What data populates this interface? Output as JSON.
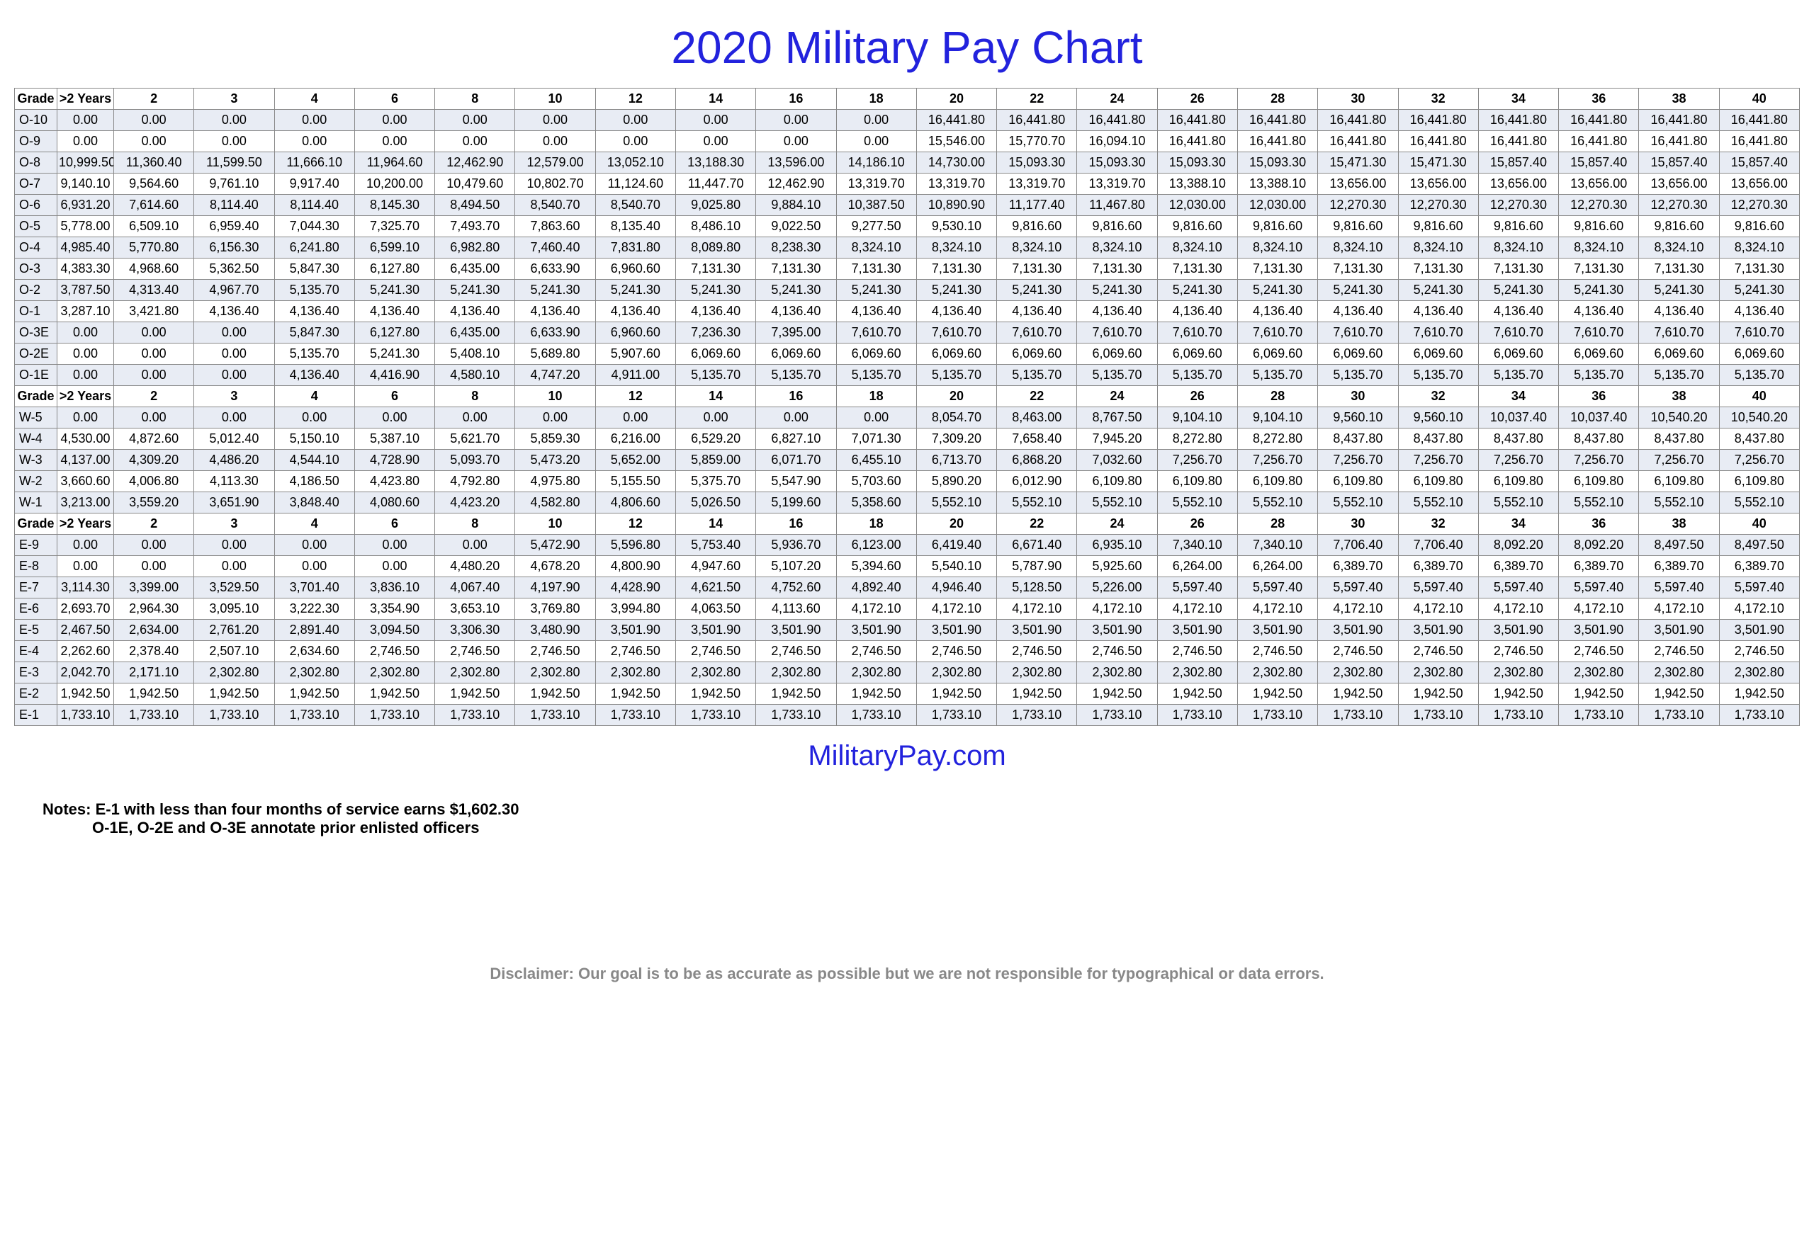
{
  "title": "2020 Military Pay Chart",
  "source": "MilitaryPay.com",
  "notes_label": "Notes:",
  "note1": "E-1 with less than four months of service earns $1,602.30",
  "note2": "O-1E, O-2E and O-3E annotate prior enlisted officers",
  "disclaimer": "Disclaimer: Our goal is to be as accurate as possible but we are not responsible for typographical or data errors.",
  "columns": [
    "Grade",
    ">2 Years",
    "2",
    "3",
    "4",
    "6",
    "8",
    "10",
    "12",
    "14",
    "16",
    "18",
    "20",
    "22",
    "24",
    "26",
    "28",
    "30",
    "32",
    "34",
    "36",
    "38",
    "40"
  ],
  "sections": [
    {
      "rows": [
        {
          "grade": "O-10",
          "cells": [
            "0.00",
            "0.00",
            "0.00",
            "0.00",
            "0.00",
            "0.00",
            "0.00",
            "0.00",
            "0.00",
            "0.00",
            "0.00",
            "16,441.80",
            "16,441.80",
            "16,441.80",
            "16,441.80",
            "16,441.80",
            "16,441.80",
            "16,441.80",
            "16,441.80",
            "16,441.80",
            "16,441.80",
            "16,441.80"
          ]
        },
        {
          "grade": "O-9",
          "cells": [
            "0.00",
            "0.00",
            "0.00",
            "0.00",
            "0.00",
            "0.00",
            "0.00",
            "0.00",
            "0.00",
            "0.00",
            "0.00",
            "15,546.00",
            "15,770.70",
            "16,094.10",
            "16,441.80",
            "16,441.80",
            "16,441.80",
            "16,441.80",
            "16,441.80",
            "16,441.80",
            "16,441.80",
            "16,441.80"
          ]
        },
        {
          "grade": "O-8",
          "cells": [
            "10,999.50",
            "11,360.40",
            "11,599.50",
            "11,666.10",
            "11,964.60",
            "12,462.90",
            "12,579.00",
            "13,052.10",
            "13,188.30",
            "13,596.00",
            "14,186.10",
            "14,730.00",
            "15,093.30",
            "15,093.30",
            "15,093.30",
            "15,093.30",
            "15,471.30",
            "15,471.30",
            "15,857.40",
            "15,857.40",
            "15,857.40",
            "15,857.40"
          ]
        },
        {
          "grade": "O-7",
          "cells": [
            "9,140.10",
            "9,564.60",
            "9,761.10",
            "9,917.40",
            "10,200.00",
            "10,479.60",
            "10,802.70",
            "11,124.60",
            "11,447.70",
            "12,462.90",
            "13,319.70",
            "13,319.70",
            "13,319.70",
            "13,319.70",
            "13,388.10",
            "13,388.10",
            "13,656.00",
            "13,656.00",
            "13,656.00",
            "13,656.00",
            "13,656.00",
            "13,656.00"
          ]
        },
        {
          "grade": "O-6",
          "cells": [
            "6,931.20",
            "7,614.60",
            "8,114.40",
            "8,114.40",
            "8,145.30",
            "8,494.50",
            "8,540.70",
            "8,540.70",
            "9,025.80",
            "9,884.10",
            "10,387.50",
            "10,890.90",
            "11,177.40",
            "11,467.80",
            "12,030.00",
            "12,030.00",
            "12,270.30",
            "12,270.30",
            "12,270.30",
            "12,270.30",
            "12,270.30",
            "12,270.30"
          ]
        },
        {
          "grade": "O-5",
          "cells": [
            "5,778.00",
            "6,509.10",
            "6,959.40",
            "7,044.30",
            "7,325.70",
            "7,493.70",
            "7,863.60",
            "8,135.40",
            "8,486.10",
            "9,022.50",
            "9,277.50",
            "9,530.10",
            "9,816.60",
            "9,816.60",
            "9,816.60",
            "9,816.60",
            "9,816.60",
            "9,816.60",
            "9,816.60",
            "9,816.60",
            "9,816.60",
            "9,816.60"
          ]
        },
        {
          "grade": "O-4",
          "cells": [
            "4,985.40",
            "5,770.80",
            "6,156.30",
            "6,241.80",
            "6,599.10",
            "6,982.80",
            "7,460.40",
            "7,831.80",
            "8,089.80",
            "8,238.30",
            "8,324.10",
            "8,324.10",
            "8,324.10",
            "8,324.10",
            "8,324.10",
            "8,324.10",
            "8,324.10",
            "8,324.10",
            "8,324.10",
            "8,324.10",
            "8,324.10",
            "8,324.10"
          ]
        },
        {
          "grade": "O-3",
          "cells": [
            "4,383.30",
            "4,968.60",
            "5,362.50",
            "5,847.30",
            "6,127.80",
            "6,435.00",
            "6,633.90",
            "6,960.60",
            "7,131.30",
            "7,131.30",
            "7,131.30",
            "7,131.30",
            "7,131.30",
            "7,131.30",
            "7,131.30",
            "7,131.30",
            "7,131.30",
            "7,131.30",
            "7,131.30",
            "7,131.30",
            "7,131.30",
            "7,131.30"
          ]
        },
        {
          "grade": "O-2",
          "cells": [
            "3,787.50",
            "4,313.40",
            "4,967.70",
            "5,135.70",
            "5,241.30",
            "5,241.30",
            "5,241.30",
            "5,241.30",
            "5,241.30",
            "5,241.30",
            "5,241.30",
            "5,241.30",
            "5,241.30",
            "5,241.30",
            "5,241.30",
            "5,241.30",
            "5,241.30",
            "5,241.30",
            "5,241.30",
            "5,241.30",
            "5,241.30",
            "5,241.30"
          ]
        },
        {
          "grade": "O-1",
          "cells": [
            "3,287.10",
            "3,421.80",
            "4,136.40",
            "4,136.40",
            "4,136.40",
            "4,136.40",
            "4,136.40",
            "4,136.40",
            "4,136.40",
            "4,136.40",
            "4,136.40",
            "4,136.40",
            "4,136.40",
            "4,136.40",
            "4,136.40",
            "4,136.40",
            "4,136.40",
            "4,136.40",
            "4,136.40",
            "4,136.40",
            "4,136.40",
            "4,136.40"
          ]
        },
        {
          "grade": "O-3E",
          "cells": [
            "0.00",
            "0.00",
            "0.00",
            "5,847.30",
            "6,127.80",
            "6,435.00",
            "6,633.90",
            "6,960.60",
            "7,236.30",
            "7,395.00",
            "7,610.70",
            "7,610.70",
            "7,610.70",
            "7,610.70",
            "7,610.70",
            "7,610.70",
            "7,610.70",
            "7,610.70",
            "7,610.70",
            "7,610.70",
            "7,610.70",
            "7,610.70"
          ]
        },
        {
          "grade": "O-2E",
          "cells": [
            "0.00",
            "0.00",
            "0.00",
            "5,135.70",
            "5,241.30",
            "5,408.10",
            "5,689.80",
            "5,907.60",
            "6,069.60",
            "6,069.60",
            "6,069.60",
            "6,069.60",
            "6,069.60",
            "6,069.60",
            "6,069.60",
            "6,069.60",
            "6,069.60",
            "6,069.60",
            "6,069.60",
            "6,069.60",
            "6,069.60",
            "6,069.60"
          ]
        },
        {
          "grade": "O-1E",
          "cells": [
            "0.00",
            "0.00",
            "0.00",
            "4,136.40",
            "4,416.90",
            "4,580.10",
            "4,747.20",
            "4,911.00",
            "5,135.70",
            "5,135.70",
            "5,135.70",
            "5,135.70",
            "5,135.70",
            "5,135.70",
            "5,135.70",
            "5,135.70",
            "5,135.70",
            "5,135.70",
            "5,135.70",
            "5,135.70",
            "5,135.70",
            "5,135.70"
          ]
        }
      ]
    },
    {
      "rows": [
        {
          "grade": "W-5",
          "cells": [
            "0.00",
            "0.00",
            "0.00",
            "0.00",
            "0.00",
            "0.00",
            "0.00",
            "0.00",
            "0.00",
            "0.00",
            "0.00",
            "8,054.70",
            "8,463.00",
            "8,767.50",
            "9,104.10",
            "9,104.10",
            "9,560.10",
            "9,560.10",
            "10,037.40",
            "10,037.40",
            "10,540.20",
            "10,540.20"
          ]
        },
        {
          "grade": "W-4",
          "cells": [
            "4,530.00",
            "4,872.60",
            "5,012.40",
            "5,150.10",
            "5,387.10",
            "5,621.70",
            "5,859.30",
            "6,216.00",
            "6,529.20",
            "6,827.10",
            "7,071.30",
            "7,309.20",
            "7,658.40",
            "7,945.20",
            "8,272.80",
            "8,272.80",
            "8,437.80",
            "8,437.80",
            "8,437.80",
            "8,437.80",
            "8,437.80",
            "8,437.80"
          ]
        },
        {
          "grade": "W-3",
          "cells": [
            "4,137.00",
            "4,309.20",
            "4,486.20",
            "4,544.10",
            "4,728.90",
            "5,093.70",
            "5,473.20",
            "5,652.00",
            "5,859.00",
            "6,071.70",
            "6,455.10",
            "6,713.70",
            "6,868.20",
            "7,032.60",
            "7,256.70",
            "7,256.70",
            "7,256.70",
            "7,256.70",
            "7,256.70",
            "7,256.70",
            "7,256.70",
            "7,256.70"
          ]
        },
        {
          "grade": "W-2",
          "cells": [
            "3,660.60",
            "4,006.80",
            "4,113.30",
            "4,186.50",
            "4,423.80",
            "4,792.80",
            "4,975.80",
            "5,155.50",
            "5,375.70",
            "5,547.90",
            "5,703.60",
            "5,890.20",
            "6,012.90",
            "6,109.80",
            "6,109.80",
            "6,109.80",
            "6,109.80",
            "6,109.80",
            "6,109.80",
            "6,109.80",
            "6,109.80",
            "6,109.80"
          ]
        },
        {
          "grade": "W-1",
          "cells": [
            "3,213.00",
            "3,559.20",
            "3,651.90",
            "3,848.40",
            "4,080.60",
            "4,423.20",
            "4,582.80",
            "4,806.60",
            "5,026.50",
            "5,199.60",
            "5,358.60",
            "5,552.10",
            "5,552.10",
            "5,552.10",
            "5,552.10",
            "5,552.10",
            "5,552.10",
            "5,552.10",
            "5,552.10",
            "5,552.10",
            "5,552.10",
            "5,552.10"
          ]
        }
      ]
    },
    {
      "rows": [
        {
          "grade": "E-9",
          "cells": [
            "0.00",
            "0.00",
            "0.00",
            "0.00",
            "0.00",
            "0.00",
            "5,472.90",
            "5,596.80",
            "5,753.40",
            "5,936.70",
            "6,123.00",
            "6,419.40",
            "6,671.40",
            "6,935.10",
            "7,340.10",
            "7,340.10",
            "7,706.40",
            "7,706.40",
            "8,092.20",
            "8,092.20",
            "8,497.50",
            "8,497.50"
          ]
        },
        {
          "grade": "E-8",
          "cells": [
            "0.00",
            "0.00",
            "0.00",
            "0.00",
            "0.00",
            "4,480.20",
            "4,678.20",
            "4,800.90",
            "4,947.60",
            "5,107.20",
            "5,394.60",
            "5,540.10",
            "5,787.90",
            "5,925.60",
            "6,264.00",
            "6,264.00",
            "6,389.70",
            "6,389.70",
            "6,389.70",
            "6,389.70",
            "6,389.70",
            "6,389.70"
          ]
        },
        {
          "grade": "E-7",
          "cells": [
            "3,114.30",
            "3,399.00",
            "3,529.50",
            "3,701.40",
            "3,836.10",
            "4,067.40",
            "4,197.90",
            "4,428.90",
            "4,621.50",
            "4,752.60",
            "4,892.40",
            "4,946.40",
            "5,128.50",
            "5,226.00",
            "5,597.40",
            "5,597.40",
            "5,597.40",
            "5,597.40",
            "5,597.40",
            "5,597.40",
            "5,597.40",
            "5,597.40"
          ]
        },
        {
          "grade": "E-6",
          "cells": [
            "2,693.70",
            "2,964.30",
            "3,095.10",
            "3,222.30",
            "3,354.90",
            "3,653.10",
            "3,769.80",
            "3,994.80",
            "4,063.50",
            "4,113.60",
            "4,172.10",
            "4,172.10",
            "4,172.10",
            "4,172.10",
            "4,172.10",
            "4,172.10",
            "4,172.10",
            "4,172.10",
            "4,172.10",
            "4,172.10",
            "4,172.10",
            "4,172.10"
          ]
        },
        {
          "grade": "E-5",
          "cells": [
            "2,467.50",
            "2,634.00",
            "2,761.20",
            "2,891.40",
            "3,094.50",
            "3,306.30",
            "3,480.90",
            "3,501.90",
            "3,501.90",
            "3,501.90",
            "3,501.90",
            "3,501.90",
            "3,501.90",
            "3,501.90",
            "3,501.90",
            "3,501.90",
            "3,501.90",
            "3,501.90",
            "3,501.90",
            "3,501.90",
            "3,501.90",
            "3,501.90"
          ]
        },
        {
          "grade": "E-4",
          "cells": [
            "2,262.60",
            "2,378.40",
            "2,507.10",
            "2,634.60",
            "2,746.50",
            "2,746.50",
            "2,746.50",
            "2,746.50",
            "2,746.50",
            "2,746.50",
            "2,746.50",
            "2,746.50",
            "2,746.50",
            "2,746.50",
            "2,746.50",
            "2,746.50",
            "2,746.50",
            "2,746.50",
            "2,746.50",
            "2,746.50",
            "2,746.50",
            "2,746.50"
          ]
        },
        {
          "grade": "E-3",
          "cells": [
            "2,042.70",
            "2,171.10",
            "2,302.80",
            "2,302.80",
            "2,302.80",
            "2,302.80",
            "2,302.80",
            "2,302.80",
            "2,302.80",
            "2,302.80",
            "2,302.80",
            "2,302.80",
            "2,302.80",
            "2,302.80",
            "2,302.80",
            "2,302.80",
            "2,302.80",
            "2,302.80",
            "2,302.80",
            "2,302.80",
            "2,302.80",
            "2,302.80"
          ]
        },
        {
          "grade": "E-2",
          "cells": [
            "1,942.50",
            "1,942.50",
            "1,942.50",
            "1,942.50",
            "1,942.50",
            "1,942.50",
            "1,942.50",
            "1,942.50",
            "1,942.50",
            "1,942.50",
            "1,942.50",
            "1,942.50",
            "1,942.50",
            "1,942.50",
            "1,942.50",
            "1,942.50",
            "1,942.50",
            "1,942.50",
            "1,942.50",
            "1,942.50",
            "1,942.50",
            "1,942.50"
          ]
        },
        {
          "grade": "E-1",
          "cells": [
            "1,733.10",
            "1,733.10",
            "1,733.10",
            "1,733.10",
            "1,733.10",
            "1,733.10",
            "1,733.10",
            "1,733.10",
            "1,733.10",
            "1,733.10",
            "1,733.10",
            "1,733.10",
            "1,733.10",
            "1,733.10",
            "1,733.10",
            "1,733.10",
            "1,733.10",
            "1,733.10",
            "1,733.10",
            "1,733.10",
            "1,733.10",
            "1,733.10"
          ]
        }
      ]
    }
  ]
}
